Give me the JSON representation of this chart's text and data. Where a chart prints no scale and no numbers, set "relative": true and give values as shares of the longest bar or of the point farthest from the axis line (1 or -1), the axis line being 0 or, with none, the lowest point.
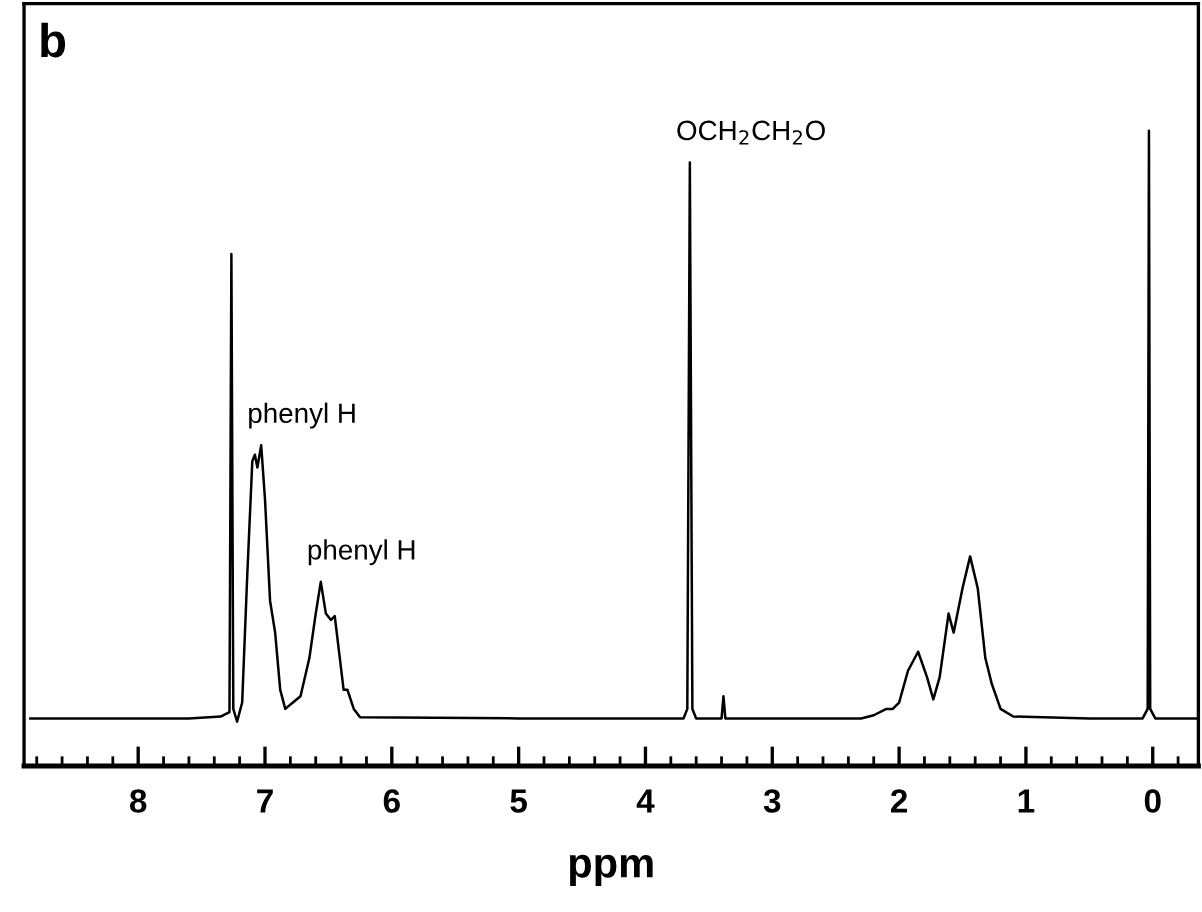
{
  "chart_data": {
    "type": "line",
    "relative": true,
    "xlabel": "ppm",
    "tick_labels": "x",
    "grid": false,
    "marker": "none",
    "line_style": "solid",
    "xlim": [
      8.9,
      -0.36
    ],
    "xticks": [
      8,
      7,
      6,
      5,
      4,
      3,
      2,
      1,
      0
    ],
    "annotations": [
      "b",
      {
        "text": "phenyl H",
        "x": 7.03,
        "y": 0.505
      },
      {
        "text": "phenyl H",
        "x": 6.56,
        "y": 0.29
      },
      {
        "text": "OCH$_{2}$CH$_{2}$O",
        "x": 3.65,
        "y": 0.95
      }
    ],
    "series": [
      {
        "color": "#000000",
        "x": [
          8.85,
          7.6,
          7.35,
          7.28,
          7.265,
          7.25,
          7.22,
          7.18,
          7.14,
          7.1,
          7.08,
          7.06,
          7.03,
          7.0,
          6.96,
          6.92,
          6.88,
          6.84,
          6.78,
          6.72,
          6.65,
          6.6,
          6.56,
          6.52,
          6.48,
          6.45,
          6.41,
          6.38,
          6.35,
          6.3,
          6.25,
          5.0,
          3.7,
          3.67,
          3.65,
          3.63,
          3.6,
          3.4,
          3.385,
          3.37,
          2.3,
          2.2,
          2.1,
          2.05,
          2.0,
          1.93,
          1.85,
          1.78,
          1.73,
          1.68,
          1.61,
          1.57,
          1.5,
          1.44,
          1.38,
          1.32,
          1.27,
          1.2,
          1.1,
          0.5,
          0.08,
          0.04,
          0.03,
          0.02,
          -0.02,
          -0.35
        ],
        "values": [
          0.075,
          0.075,
          0.078,
          0.085,
          0.806,
          0.09,
          0.07,
          0.1,
          0.3,
          0.48,
          0.49,
          0.47,
          0.505,
          0.42,
          0.26,
          0.21,
          0.12,
          0.09,
          0.1,
          0.11,
          0.17,
          0.24,
          0.29,
          0.24,
          0.23,
          0.236,
          0.17,
          0.12,
          0.12,
          0.09,
          0.077,
          0.075,
          0.075,
          0.09,
          0.95,
          0.09,
          0.075,
          0.075,
          0.11,
          0.075,
          0.075,
          0.08,
          0.09,
          0.09,
          0.1,
          0.15,
          0.18,
          0.14,
          0.105,
          0.14,
          0.24,
          0.21,
          0.28,
          0.33,
          0.28,
          0.17,
          0.13,
          0.09,
          0.078,
          0.075,
          0.075,
          0.09,
          1.0,
          0.09,
          0.075,
          0.075
        ]
      }
    ]
  }
}
